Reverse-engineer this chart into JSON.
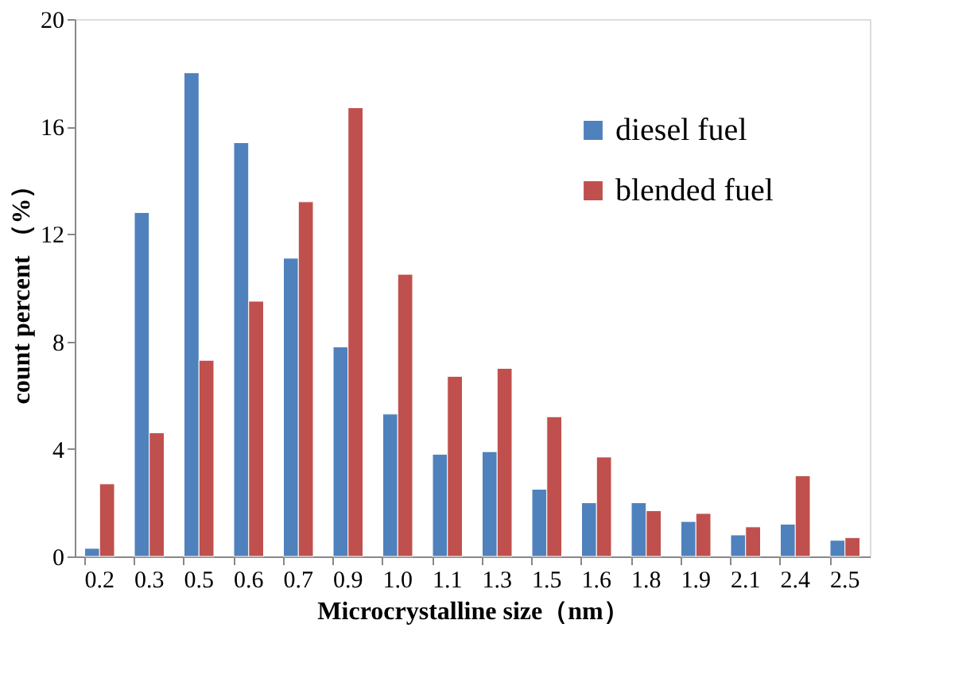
{
  "chart_data": {
    "type": "bar",
    "xlabel": "Microcrystalline size（nm）",
    "ylabel": "count percent （%）",
    "categories": [
      "0.2",
      "0.3",
      "0.5",
      "0.6",
      "0.7",
      "0.9",
      "1.0",
      "1.1",
      "1.3",
      "1.5",
      "1.6",
      "1.8",
      "1.9",
      "2.1",
      "2.4",
      "2.5"
    ],
    "series": [
      {
        "name": "diesel fuel",
        "color": "#4f81bd",
        "values": [
          0.3,
          12.8,
          18,
          15.4,
          11.1,
          7.8,
          5.3,
          3.8,
          3.9,
          2.5,
          2.0,
          2.0,
          1.3,
          0.8,
          1.2,
          0.6
        ]
      },
      {
        "name": "blended fuel",
        "color": "#c0504d",
        "values": [
          2.7,
          4.6,
          7.3,
          9.5,
          13.2,
          16.7,
          10.5,
          6.7,
          7.0,
          5.2,
          3.7,
          1.7,
          1.6,
          1.1,
          3.0,
          0.7
        ]
      }
    ],
    "ylim": [
      0,
      20
    ],
    "yticks": [
      0,
      4,
      8,
      12,
      16,
      20
    ],
    "grid": false,
    "legend": "top right"
  }
}
